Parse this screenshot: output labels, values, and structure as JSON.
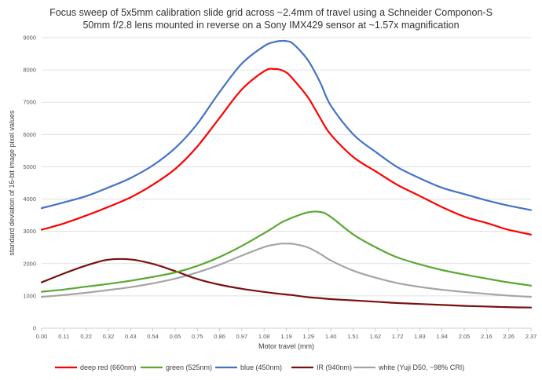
{
  "chart_data": {
    "type": "line",
    "title_lines": [
      "Focus sweep of 5x5mm calibration slide grid across ~2.4mm of travel using a Schneider Componon-S",
      "50mm f/2.8 lens mounted in reverse on a Sony IMX429 sensor at ~1.57x magnification"
    ],
    "xlabel": "Motor travel (mm)",
    "ylabel": "standard deviation of 16-bit image pixel values",
    "x_tick_labels": [
      "0.00",
      "0.11",
      "0.22",
      "0.32",
      "0.43",
      "0.54",
      "0.65",
      "0.75",
      "0.86",
      "0.97",
      "1.08",
      "1.19",
      "1.29",
      "1.40",
      "1.51",
      "1.62",
      "1.72",
      "1.83",
      "1.94",
      "2.05",
      "2.16",
      "2.26",
      "2.37"
    ],
    "xlim": [
      0,
      2.37
    ],
    "y_ticks": [
      0,
      1000,
      2000,
      3000,
      4000,
      5000,
      6000,
      7000,
      8000,
      9000
    ],
    "ylim": [
      0,
      9000
    ],
    "grid": "horizontal",
    "legend_position": "bottom",
    "x": [
      0.0,
      0.11,
      0.22,
      0.32,
      0.43,
      0.54,
      0.65,
      0.75,
      0.86,
      0.97,
      1.08,
      1.13,
      1.16,
      1.19,
      1.22,
      1.29,
      1.35,
      1.4,
      1.51,
      1.62,
      1.72,
      1.83,
      1.94,
      2.05,
      2.16,
      2.26,
      2.37
    ],
    "series": [
      {
        "name": "deep red (660nm)",
        "color": "#ff0000",
        "values": [
          3050,
          3250,
          3500,
          3750,
          4050,
          4450,
          4950,
          5600,
          6500,
          7400,
          7970,
          8030,
          8000,
          7900,
          7700,
          7150,
          6500,
          6000,
          5300,
          4850,
          4450,
          4100,
          3750,
          3450,
          3250,
          3050,
          2900
        ]
      },
      {
        "name": "green (525nm)",
        "color": "#5aa832",
        "values": [
          1130,
          1200,
          1290,
          1370,
          1470,
          1590,
          1730,
          1920,
          2200,
          2550,
          2950,
          3150,
          3270,
          3360,
          3440,
          3590,
          3600,
          3450,
          2900,
          2500,
          2200,
          1980,
          1800,
          1660,
          1530,
          1420,
          1320
        ]
      },
      {
        "name": "blue (450nm)",
        "color": "#4472c4",
        "values": [
          3720,
          3900,
          4100,
          4350,
          4650,
          5050,
          5600,
          6300,
          7300,
          8200,
          8750,
          8870,
          8900,
          8890,
          8800,
          8300,
          7600,
          6900,
          6000,
          5450,
          5000,
          4650,
          4350,
          4150,
          3950,
          3800,
          3660
        ]
      },
      {
        "name": "IR (940nm)",
        "color": "#7a0f0f",
        "values": [
          1420,
          1700,
          1950,
          2120,
          2130,
          1990,
          1760,
          1530,
          1350,
          1220,
          1120,
          1080,
          1060,
          1040,
          1020,
          960,
          930,
          900,
          860,
          820,
          780,
          750,
          720,
          690,
          670,
          650,
          640
        ]
      },
      {
        "name": "white (Yuji D50, ~98% CRI)",
        "color": "#a5a5a5",
        "values": [
          970,
          1030,
          1100,
          1180,
          1270,
          1390,
          1540,
          1720,
          1960,
          2250,
          2520,
          2590,
          2620,
          2620,
          2610,
          2500,
          2300,
          2100,
          1780,
          1560,
          1400,
          1280,
          1190,
          1120,
          1060,
          1010,
          970
        ]
      }
    ]
  }
}
